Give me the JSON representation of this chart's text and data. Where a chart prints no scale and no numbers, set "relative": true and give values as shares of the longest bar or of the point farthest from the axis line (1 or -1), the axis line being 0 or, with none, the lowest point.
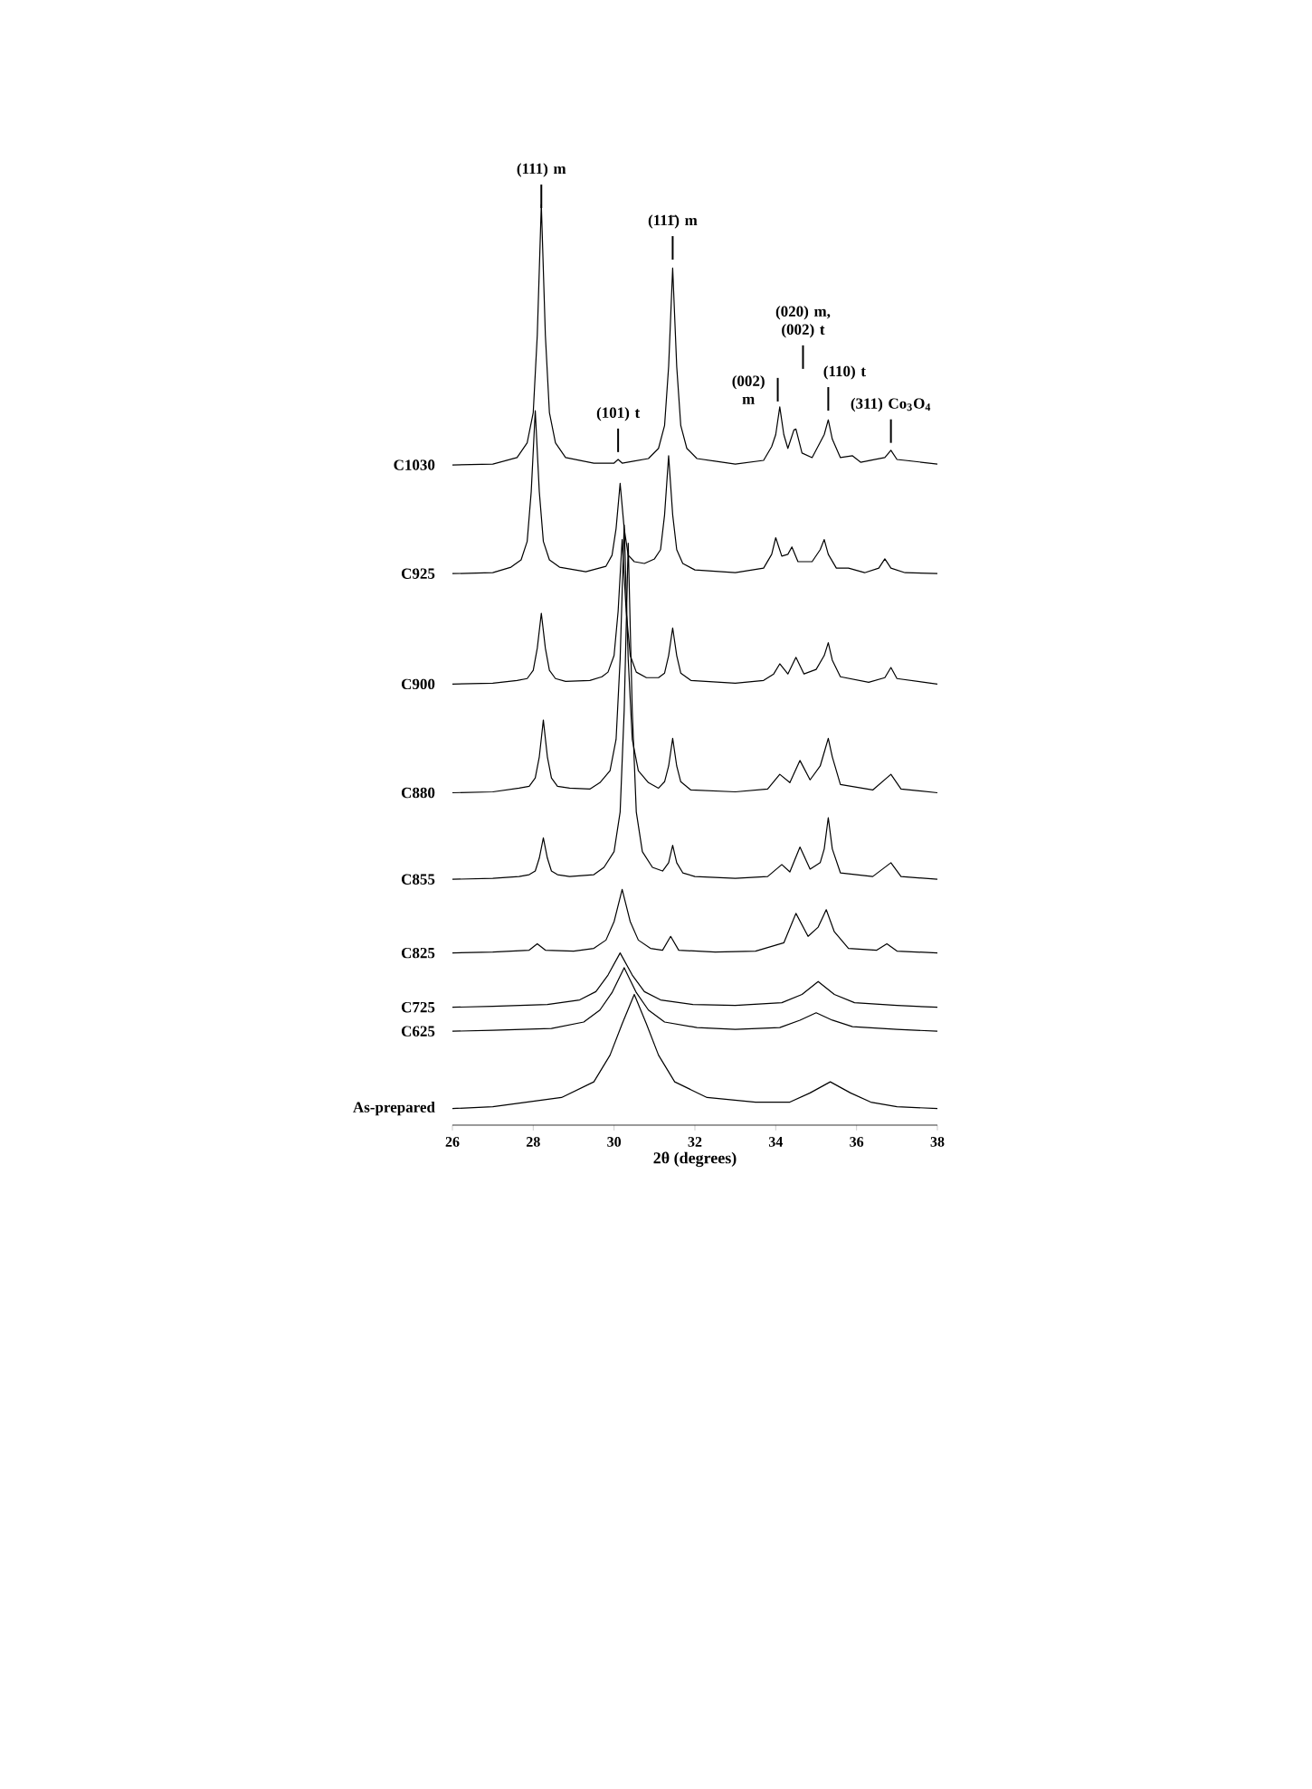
{
  "chart_data": {
    "type": "line",
    "relative": true,
    "xlabel": "2θ (degrees)",
    "xlim": [
      26,
      38
    ],
    "xticks": [
      26,
      28,
      30,
      32,
      34,
      36,
      38
    ],
    "series": [
      {
        "name": "C1030",
        "color": "#000000",
        "x": [
          26,
          27,
          27.6,
          27.85,
          28.0,
          28.1,
          28.2,
          28.3,
          28.4,
          28.55,
          28.8,
          29.5,
          30.0,
          30.1,
          30.2,
          30.85,
          31.1,
          31.25,
          31.35,
          31.45,
          31.55,
          31.65,
          31.8,
          32.05,
          33,
          33.7,
          33.9,
          34.0,
          34.1,
          34.2,
          34.3,
          34.45,
          34.5,
          34.65,
          34.9,
          35.2,
          35.3,
          35.4,
          35.6,
          35.9,
          36.1,
          36.7,
          36.85,
          37.0,
          38
        ],
        "values": [
          0.717,
          0.718,
          0.725,
          0.741,
          0.774,
          0.858,
          1.0,
          0.858,
          0.774,
          0.741,
          0.725,
          0.719,
          0.719,
          0.723,
          0.719,
          0.724,
          0.735,
          0.76,
          0.824,
          0.931,
          0.824,
          0.76,
          0.735,
          0.724,
          0.718,
          0.722,
          0.737,
          0.75,
          0.78,
          0.75,
          0.735,
          0.755,
          0.756,
          0.73,
          0.725,
          0.75,
          0.766,
          0.745,
          0.725,
          0.727,
          0.72,
          0.725,
          0.733,
          0.723,
          0.718
        ]
      },
      {
        "name": "C925",
        "color": "#000000",
        "x": [
          26,
          27,
          27.45,
          27.7,
          27.85,
          27.95,
          28.05,
          28.15,
          28.25,
          28.4,
          28.65,
          29.3,
          29.8,
          29.95,
          30.05,
          30.15,
          30.25,
          30.35,
          30.5,
          30.75,
          31.0,
          31.15,
          31.25,
          31.35,
          31.45,
          31.55,
          31.7,
          32.0,
          33,
          33.7,
          33.9,
          34.0,
          34.15,
          34.3,
          34.4,
          34.55,
          34.9,
          35.1,
          35.2,
          35.3,
          35.5,
          35.8,
          36.2,
          36.55,
          36.7,
          36.85,
          37.2,
          38
        ],
        "values": [
          0.599,
          0.6,
          0.606,
          0.614,
          0.634,
          0.688,
          0.776,
          0.688,
          0.634,
          0.614,
          0.606,
          0.601,
          0.607,
          0.619,
          0.648,
          0.697,
          0.648,
          0.619,
          0.612,
          0.61,
          0.615,
          0.625,
          0.663,
          0.727,
          0.663,
          0.625,
          0.61,
          0.603,
          0.6,
          0.605,
          0.62,
          0.638,
          0.618,
          0.62,
          0.628,
          0.612,
          0.612,
          0.625,
          0.636,
          0.62,
          0.605,
          0.605,
          0.6,
          0.605,
          0.615,
          0.605,
          0.6,
          0.599
        ]
      },
      {
        "name": "C900",
        "color": "#000000",
        "x": [
          26,
          27,
          27.6,
          27.85,
          28.0,
          28.1,
          28.2,
          28.3,
          28.4,
          28.55,
          28.8,
          29.4,
          29.7,
          29.85,
          30.0,
          30.1,
          30.2,
          30.3,
          30.4,
          30.55,
          30.8,
          31.1,
          31.25,
          31.35,
          31.45,
          31.55,
          31.65,
          31.9,
          33,
          33.7,
          33.95,
          34.1,
          34.3,
          34.5,
          34.7,
          35.0,
          35.2,
          35.3,
          35.4,
          35.6,
          36.3,
          36.7,
          36.85,
          37.0,
          38
        ],
        "values": [
          0.479,
          0.48,
          0.483,
          0.485,
          0.494,
          0.518,
          0.556,
          0.518,
          0.494,
          0.485,
          0.482,
          0.483,
          0.487,
          0.492,
          0.51,
          0.558,
          0.636,
          0.558,
          0.51,
          0.492,
          0.486,
          0.486,
          0.491,
          0.51,
          0.54,
          0.51,
          0.491,
          0.483,
          0.48,
          0.483,
          0.49,
          0.501,
          0.49,
          0.508,
          0.49,
          0.495,
          0.51,
          0.524,
          0.505,
          0.487,
          0.481,
          0.486,
          0.497,
          0.485,
          0.479
        ]
      },
      {
        "name": "C880",
        "color": "#000000",
        "x": [
          26,
          27,
          27.65,
          27.9,
          28.05,
          28.15,
          28.25,
          28.35,
          28.45,
          28.6,
          28.9,
          29.4,
          29.65,
          29.9,
          30.05,
          30.15,
          30.25,
          30.35,
          30.45,
          30.6,
          30.85,
          31.1,
          31.25,
          31.35,
          31.45,
          31.55,
          31.65,
          31.9,
          33,
          33.8,
          34.1,
          34.35,
          34.6,
          34.85,
          35.1,
          35.2,
          35.3,
          35.4,
          35.6,
          36.4,
          36.85,
          37.1,
          38
        ],
        "values": [
          0.361,
          0.362,
          0.366,
          0.368,
          0.377,
          0.4,
          0.44,
          0.4,
          0.377,
          0.368,
          0.366,
          0.365,
          0.372,
          0.385,
          0.419,
          0.506,
          0.652,
          0.506,
          0.419,
          0.385,
          0.372,
          0.366,
          0.373,
          0.39,
          0.42,
          0.39,
          0.373,
          0.364,
          0.362,
          0.365,
          0.381,
          0.372,
          0.396,
          0.375,
          0.39,
          0.405,
          0.42,
          0.4,
          0.37,
          0.364,
          0.381,
          0.365,
          0.361
        ]
      },
      {
        "name": "C855",
        "color": "#000000",
        "x": [
          26,
          27,
          27.65,
          27.9,
          28.05,
          28.15,
          28.25,
          28.35,
          28.45,
          28.6,
          28.9,
          29.5,
          29.75,
          30.0,
          30.15,
          30.25,
          30.35,
          30.45,
          30.55,
          30.7,
          30.95,
          31.2,
          31.35,
          31.45,
          31.55,
          31.7,
          32.0,
          33,
          33.8,
          34.15,
          34.35,
          34.6,
          34.85,
          35.1,
          35.2,
          35.3,
          35.4,
          35.6,
          36.4,
          36.85,
          37.1,
          38
        ],
        "values": [
          0.267,
          0.268,
          0.27,
          0.272,
          0.276,
          0.29,
          0.312,
          0.29,
          0.276,
          0.272,
          0.27,
          0.272,
          0.28,
          0.297,
          0.34,
          0.45,
          0.632,
          0.45,
          0.34,
          0.297,
          0.28,
          0.276,
          0.285,
          0.304,
          0.285,
          0.274,
          0.27,
          0.268,
          0.27,
          0.283,
          0.275,
          0.302,
          0.278,
          0.285,
          0.3,
          0.334,
          0.3,
          0.274,
          0.27,
          0.285,
          0.27,
          0.267
        ]
      },
      {
        "name": "C825",
        "color": "#000000",
        "x": [
          26,
          27,
          27.9,
          28.1,
          28.3,
          29,
          29.5,
          29.8,
          30.0,
          30.2,
          30.4,
          30.6,
          30.9,
          31.2,
          31.4,
          31.6,
          32.5,
          33.5,
          34.2,
          34.5,
          34.8,
          35.05,
          35.25,
          35.45,
          35.8,
          36.5,
          36.75,
          37.0,
          38
        ],
        "values": [
          0.187,
          0.188,
          0.19,
          0.197,
          0.19,
          0.189,
          0.192,
          0.201,
          0.221,
          0.256,
          0.221,
          0.201,
          0.192,
          0.19,
          0.205,
          0.19,
          0.188,
          0.189,
          0.198,
          0.23,
          0.205,
          0.215,
          0.234,
          0.21,
          0.192,
          0.19,
          0.197,
          0.189,
          0.187
        ]
      },
      {
        "name": "C725",
        "color": "#000000",
        "x": [
          26,
          27,
          28.35,
          29.15,
          29.55,
          29.85,
          30.15,
          30.45,
          30.75,
          31.15,
          31.95,
          33,
          34.15,
          34.65,
          35.05,
          35.45,
          35.95,
          37,
          38
        ],
        "values": [
          0.128,
          0.129,
          0.131,
          0.136,
          0.145,
          0.163,
          0.187,
          0.163,
          0.145,
          0.136,
          0.131,
          0.13,
          0.133,
          0.142,
          0.156,
          0.142,
          0.133,
          0.13,
          0.128
        ]
      },
      {
        "name": "C625",
        "color": "#000000",
        "x": [
          26,
          27,
          28.45,
          29.25,
          29.65,
          29.95,
          30.25,
          30.55,
          30.85,
          31.25,
          32.05,
          33,
          34.1,
          34.6,
          35.0,
          35.4,
          35.9,
          37,
          38
        ],
        "values": [
          0.102,
          0.103,
          0.105,
          0.112,
          0.125,
          0.144,
          0.171,
          0.144,
          0.125,
          0.112,
          0.106,
          0.104,
          0.106,
          0.114,
          0.122,
          0.114,
          0.107,
          0.104,
          0.102
        ]
      },
      {
        "name": "As-prepared",
        "color": "#000000",
        "x": [
          26,
          27,
          28.7,
          29.5,
          29.9,
          30.2,
          30.5,
          30.8,
          31.1,
          31.5,
          32.3,
          33.5,
          34.35,
          34.85,
          35.35,
          35.85,
          36.35,
          37,
          38
        ],
        "values": [
          0.018,
          0.02,
          0.03,
          0.047,
          0.076,
          0.11,
          0.142,
          0.11,
          0.076,
          0.047,
          0.03,
          0.025,
          0.025,
          0.035,
          0.047,
          0.035,
          0.025,
          0.02,
          0.018
        ]
      }
    ],
    "annotations": [
      {
        "text": "(111) m",
        "x": 28.2,
        "y": 0.996
      },
      {
        "text": "(111̄) m",
        "x": 31.45,
        "y": 0.94
      },
      {
        "text": "(101) t",
        "x": 30.1,
        "y": 0.731
      },
      {
        "text": "(002) m",
        "x": 34.05,
        "y": 0.786
      },
      "(020) m, (002) t",
      {
        "text": "(110) t",
        "x": 35.3,
        "y": 0.776
      },
      {
        "text": "(311) Co$_{3}$O$_{4}$",
        "x": 36.85,
        "y": 0.741
      }
    ]
  }
}
